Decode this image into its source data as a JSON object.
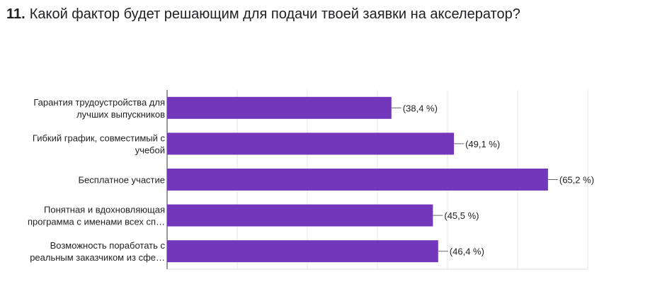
{
  "question": {
    "number": "11.",
    "text": "Какой фактор будет решающим для подачи твоей заявки на акселератор?"
  },
  "chart_data": {
    "type": "bar",
    "orientation": "horizontal",
    "title": "",
    "xlabel": "",
    "ylabel": "",
    "grid": true,
    "legend": "none",
    "bar_color": "#7337BB",
    "xlim": [
      0,
      72
    ],
    "categories": [
      [
        "Гарантия трудоустройства для",
        "лучших выпускников"
      ],
      [
        "Гибкий график, совместимый с",
        "учебой"
      ],
      [
        "Бесплатное участие"
      ],
      [
        "Понятная и вдохновляющая",
        "программа с именами всех сп…"
      ],
      [
        "Возможность поработать с",
        "реальным заказчиком из сфе…"
      ]
    ],
    "values": [
      38.4,
      49.1,
      65.2,
      45.5,
      46.4
    ],
    "value_labels": [
      "(38,4 %)",
      "(49,1 %)",
      "(65,2 %)",
      "(45,5 %)",
      "(46,4 %)"
    ]
  }
}
